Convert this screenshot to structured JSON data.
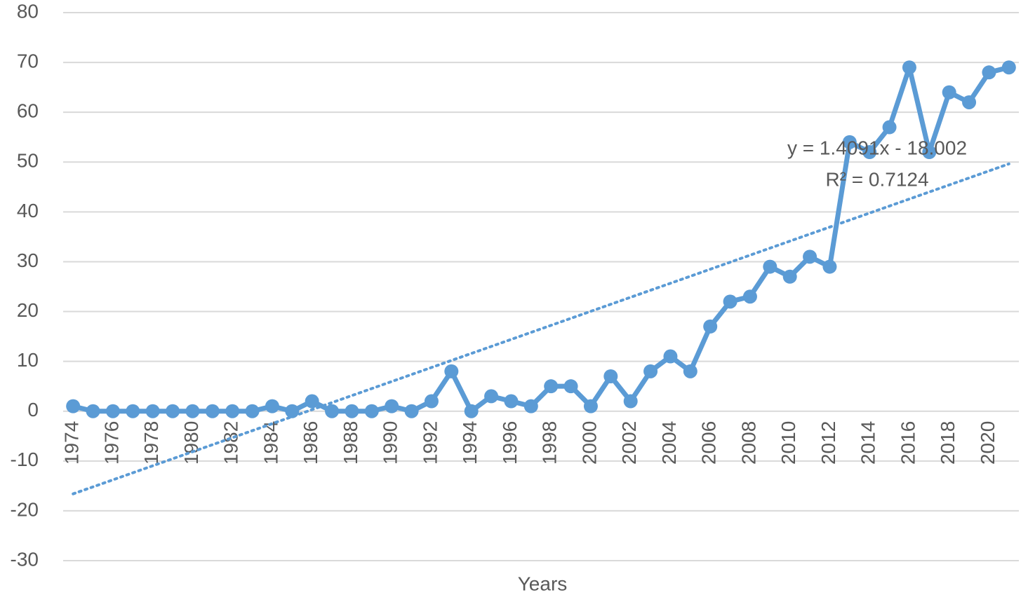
{
  "chart_data": {
    "type": "line",
    "x_label": "Years",
    "categories": [
      "1974",
      null,
      "1976",
      null,
      "1978",
      null,
      "1980",
      null,
      "1982",
      null,
      "1984",
      null,
      "1986",
      null,
      "1988",
      null,
      "1990",
      null,
      "1992",
      null,
      "1994",
      null,
      "1996",
      null,
      "1998",
      null,
      "2000",
      null,
      "2002",
      null,
      "2004",
      null,
      "2006",
      null,
      "2008",
      null,
      "2010",
      null,
      "2012",
      null,
      "2014",
      null,
      "2016",
      null,
      "2018",
      null,
      "2020",
      null
    ],
    "values": [
      1,
      0,
      0,
      0,
      0,
      0,
      0,
      0,
      0,
      0,
      1,
      0,
      2,
      0,
      0,
      0,
      1,
      0,
      2,
      8,
      0,
      3,
      2,
      1,
      5,
      5,
      1,
      7,
      2,
      8,
      11,
      8,
      17,
      22,
      23,
      29,
      27,
      31,
      29,
      54,
      52,
      57,
      69,
      52,
      64,
      62,
      68,
      69
    ],
    "color": "#5b9bd5",
    "ylim": [
      -30,
      80
    ],
    "yticks": [
      -30,
      -20,
      -10,
      0,
      10,
      20,
      30,
      40,
      50,
      60,
      70,
      80
    ],
    "grid": true,
    "trendline": {
      "equation": "y = 1.4091x - 18.002",
      "r_squared": "R² = 0.7124",
      "slope": 1.4091,
      "intercept": -18.002,
      "style": "dotted",
      "color": "#5b9bd5"
    }
  }
}
